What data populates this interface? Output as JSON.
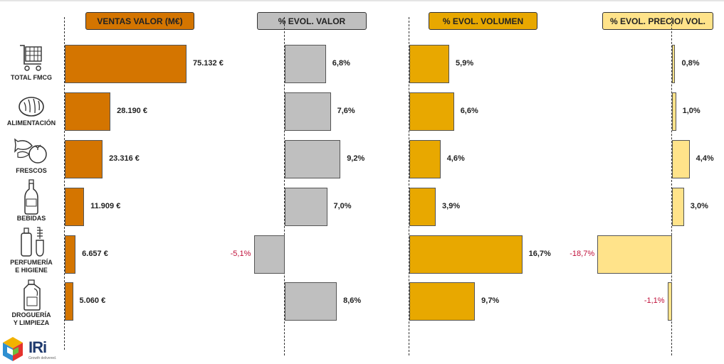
{
  "headers": {
    "ventas": "VENTAS VALOR (M€)",
    "evol_valor": "% EVOL. VALOR",
    "evol_volumen": "% EVOL. VOLUMEN",
    "evol_precio": "% EVOL. PRECIO/ VOL."
  },
  "categories": [
    {
      "label": "TOTAL FMCG",
      "icon": "shopping-cart-icon"
    },
    {
      "label": "ALIMENTACIÓN",
      "icon": "bread-icon"
    },
    {
      "label": "FRESCOS",
      "icon": "fish-tomato-icon"
    },
    {
      "label": "BEBIDAS",
      "icon": "bottle-icon"
    },
    {
      "label": "PERFUMERÍA\nE HIGIENE",
      "icon": "toiletries-icon"
    },
    {
      "label": "DROGUERÍA\nY LIMPIEZA",
      "icon": "detergent-icon"
    }
  ],
  "logo": {
    "text": "IRi",
    "tagline": "Growth delivered."
  },
  "colors": {
    "ventas": "#d47500",
    "evol_valor": "#bfbfbf",
    "evol_volumen": "#e8a800",
    "evol_precio": "#ffe38a",
    "negative_label": "#c0103a"
  },
  "chart_data": [
    {
      "type": "bar",
      "title": "VENTAS VALOR (M€)",
      "categories": [
        "TOTAL FMCG",
        "ALIMENTACIÓN",
        "FRESCOS",
        "BEBIDAS",
        "PERFUMERÍA E HIGIENE",
        "DROGUERÍA Y LIMPIEZA"
      ],
      "values": [
        75132,
        28190,
        23316,
        11909,
        6657,
        5060
      ],
      "labels": [
        "75.132 €",
        "28.190 €",
        "23.316 €",
        "11.909 €",
        "6.657 €",
        "5.060 €"
      ]
    },
    {
      "type": "bar",
      "title": "% EVOL. VALOR",
      "categories": [
        "TOTAL FMCG",
        "ALIMENTACIÓN",
        "FRESCOS",
        "BEBIDAS",
        "PERFUMERÍA E HIGIENE",
        "DROGUERÍA Y LIMPIEZA"
      ],
      "values": [
        6.8,
        7.6,
        9.2,
        7.0,
        -5.1,
        8.6
      ],
      "labels": [
        "6,8%",
        "7,6%",
        "9,2%",
        "7,0%",
        "-5,1%",
        "8,6%"
      ]
    },
    {
      "type": "bar",
      "title": "% EVOL. VOLUMEN",
      "categories": [
        "TOTAL FMCG",
        "ALIMENTACIÓN",
        "FRESCOS",
        "BEBIDAS",
        "PERFUMERÍA E HIGIENE",
        "DROGUERÍA Y LIMPIEZA"
      ],
      "values": [
        5.9,
        6.6,
        4.6,
        3.9,
        16.7,
        9.7
      ],
      "labels": [
        "5,9%",
        "6,6%",
        "4,6%",
        "3,9%",
        "16,7%",
        "9,7%"
      ]
    },
    {
      "type": "bar",
      "title": "% EVOL. PRECIO/ VOL.",
      "categories": [
        "TOTAL FMCG",
        "ALIMENTACIÓN",
        "FRESCOS",
        "BEBIDAS",
        "PERFUMERÍA E HIGIENE",
        "DROGUERÍA Y LIMPIEZA"
      ],
      "values": [
        0.8,
        1.0,
        4.4,
        3.0,
        -18.7,
        -1.1
      ],
      "labels": [
        "0,8%",
        "1,0%",
        "4,4%",
        "3,0%",
        "-18,7%",
        "-1,1%"
      ]
    }
  ]
}
